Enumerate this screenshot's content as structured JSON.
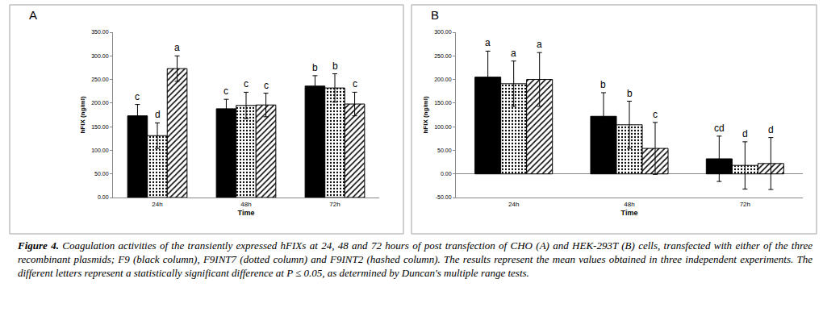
{
  "chart_data": [
    {
      "type": "bar",
      "title": "A",
      "x_label": "Time",
      "y_label": "hFIX (ng/ml)",
      "categories": [
        "24h",
        "48h",
        "72h"
      ],
      "ylim": [
        0,
        350
      ],
      "yticks": [
        {
          "value": 0,
          "label": "0.00"
        },
        {
          "value": 50,
          "label": "50.00"
        },
        {
          "value": 100,
          "label": "100.00"
        },
        {
          "value": 150,
          "label": "150.00"
        },
        {
          "value": 200,
          "label": "200.00"
        },
        {
          "value": 250,
          "label": "250.00"
        },
        {
          "value": 300,
          "label": "300.00"
        },
        {
          "value": 350,
          "label": "350.00"
        }
      ],
      "grid": false,
      "series": [
        {
          "color": "#000000",
          "marker": "solid",
          "values": [
            173,
            188,
            236
          ],
          "errors": [
            24,
            20,
            22
          ],
          "letters": [
            "c",
            "c",
            "b"
          ]
        },
        {
          "color": "#ffffff",
          "marker": "dotted",
          "values": [
            131,
            195,
            232
          ],
          "errors": [
            27,
            28,
            30
          ],
          "letters": [
            "d",
            "c",
            "b"
          ]
        },
        {
          "color": "#ffffff",
          "marker": "hatched",
          "values": [
            273,
            196,
            198
          ],
          "errors": [
            27,
            25,
            25
          ],
          "letters": [
            "a",
            "c",
            "c"
          ]
        }
      ]
    },
    {
      "type": "bar",
      "title": "B",
      "x_label": "Time",
      "y_label": "hFIX (ng/ml)",
      "categories": [
        "24h",
        "48h",
        "72h"
      ],
      "ylim": [
        -50,
        300
      ],
      "yticks": [
        {
          "value": -50,
          "label": "-50.00"
        },
        {
          "value": 0,
          "label": "0.00"
        },
        {
          "value": 50,
          "label": "50.00"
        },
        {
          "value": 100,
          "label": "100.00"
        },
        {
          "value": 150,
          "label": "150.00"
        },
        {
          "value": 200,
          "label": "200.00"
        },
        {
          "value": 250,
          "label": "250.00"
        },
        {
          "value": 300,
          "label": "300.00"
        }
      ],
      "grid": false,
      "series": [
        {
          "color": "#000000",
          "marker": "solid",
          "values": [
            205,
            122,
            32
          ],
          "errors": [
            55,
            50,
            48
          ],
          "letters": [
            "a",
            "b",
            "cd"
          ]
        },
        {
          "color": "#ffffff",
          "marker": "dotted",
          "values": [
            191,
            104,
            18
          ],
          "errors": [
            48,
            50,
            50
          ],
          "letters": [
            "a",
            "b",
            "d"
          ]
        },
        {
          "color": "#ffffff",
          "marker": "hatched",
          "values": [
            200,
            54,
            22
          ],
          "errors": [
            57,
            55,
            55
          ],
          "letters": [
            "a",
            "c",
            "d"
          ]
        }
      ]
    }
  ],
  "caption": {
    "label": "Figure 4.",
    "text": "Coagulation activities of the transiently expressed hFIXs at 24, 48 and 72 hours of post transfection of CHO (A) and HEK-293T (B) cells, transfected with either of the three recombinant plasmids; F9 (black column), F9INT7 (dotted column) and F9INT2 (hashed column). The results represent the mean values obtained in three independent experiments. The different letters represent a statistically significant difference at P ≤ 0.05, as determined by Duncan's multiple range tests."
  }
}
